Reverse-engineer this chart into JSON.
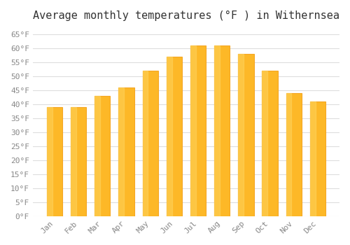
{
  "title": "Average monthly temperatures (°F ) in Withernsea",
  "months": [
    "Jan",
    "Feb",
    "Mar",
    "Apr",
    "May",
    "Jun",
    "Jul",
    "Aug",
    "Sep",
    "Oct",
    "Nov",
    "Dec"
  ],
  "values": [
    39,
    39,
    43,
    46,
    52,
    57,
    61,
    61,
    58,
    52,
    44,
    41
  ],
  "bar_color": "#FDB827",
  "bar_edge_color": "#F5A623",
  "background_color": "#FFFFFF",
  "grid_color": "#DDDDDD",
  "ylim": [
    0,
    67
  ],
  "yticks": [
    0,
    5,
    10,
    15,
    20,
    25,
    30,
    35,
    40,
    45,
    50,
    55,
    60,
    65
  ],
  "ytick_labels": [
    "0°F",
    "5°F",
    "10°F",
    "15°F",
    "20°F",
    "25°F",
    "30°F",
    "35°F",
    "40°F",
    "45°F",
    "50°F",
    "55°F",
    "60°F",
    "65°F"
  ],
  "title_fontsize": 11,
  "tick_fontsize": 8,
  "font_family": "monospace"
}
